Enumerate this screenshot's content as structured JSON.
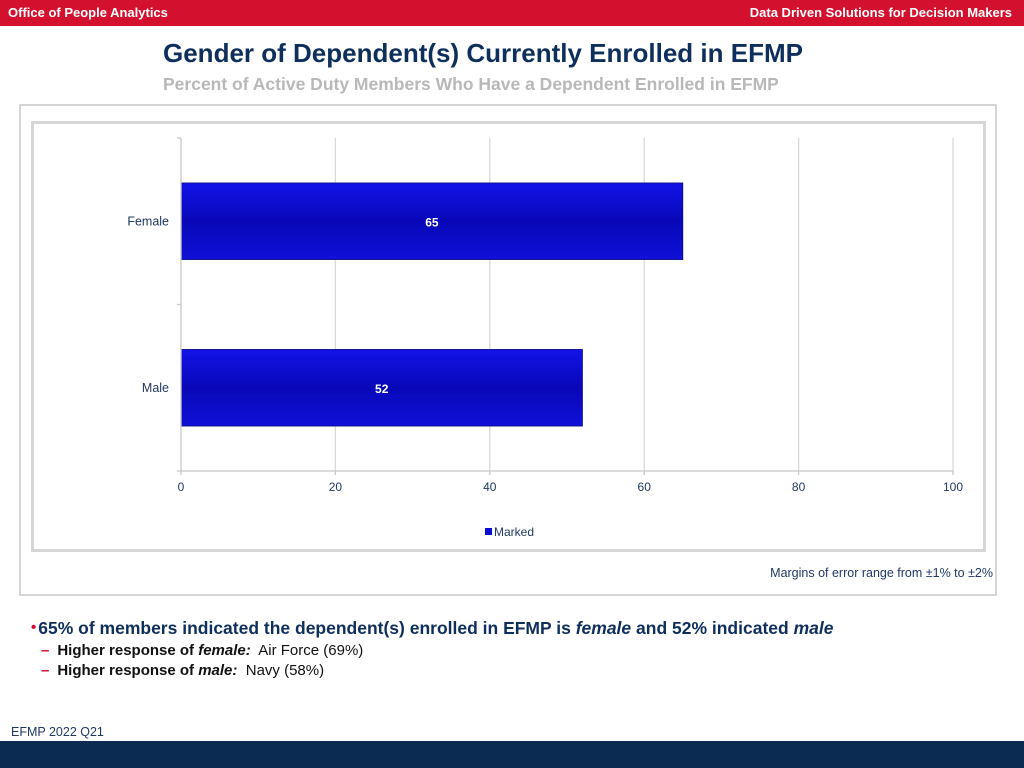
{
  "header": {
    "left": "Office of People Analytics",
    "right": "Data Driven Solutions for Decision Makers"
  },
  "title": "Gender of Dependent(s) Currently Enrolled in EFMP",
  "subtitle": "Percent of Active Duty Members Who Have a Dependent Enrolled in EFMP",
  "chart_data": {
    "type": "bar",
    "orientation": "horizontal",
    "categories": [
      "Female",
      "Male"
    ],
    "series": [
      {
        "name": "Marked",
        "values": [
          65,
          52
        ]
      }
    ],
    "xlim": [
      0,
      100
    ],
    "xticks": [
      0,
      20,
      40,
      60,
      80,
      100
    ],
    "grid": true,
    "legend": "bottom-center",
    "bar_color": "#0b0bd6"
  },
  "margin_note": "Margins of error range from ±1% to ±2%",
  "bullets": {
    "main": {
      "p1": "65% of members indicated the dependent(s) enrolled in EFMP is ",
      "em1": "female",
      "p2": " and 52% indicated ",
      "em2": "male"
    },
    "sub": [
      {
        "lead": "Higher response of ",
        "em": "female:",
        "value": "Air Force (69%)"
      },
      {
        "lead": "Higher response of ",
        "em": "male:",
        "value": "Navy (58%)"
      }
    ]
  },
  "footer": "EFMP 2022 Q21",
  "colors": {
    "top_bar": "#d3112e",
    "bottom_bar": "#0c2b52",
    "title": "#0e2f5c"
  }
}
